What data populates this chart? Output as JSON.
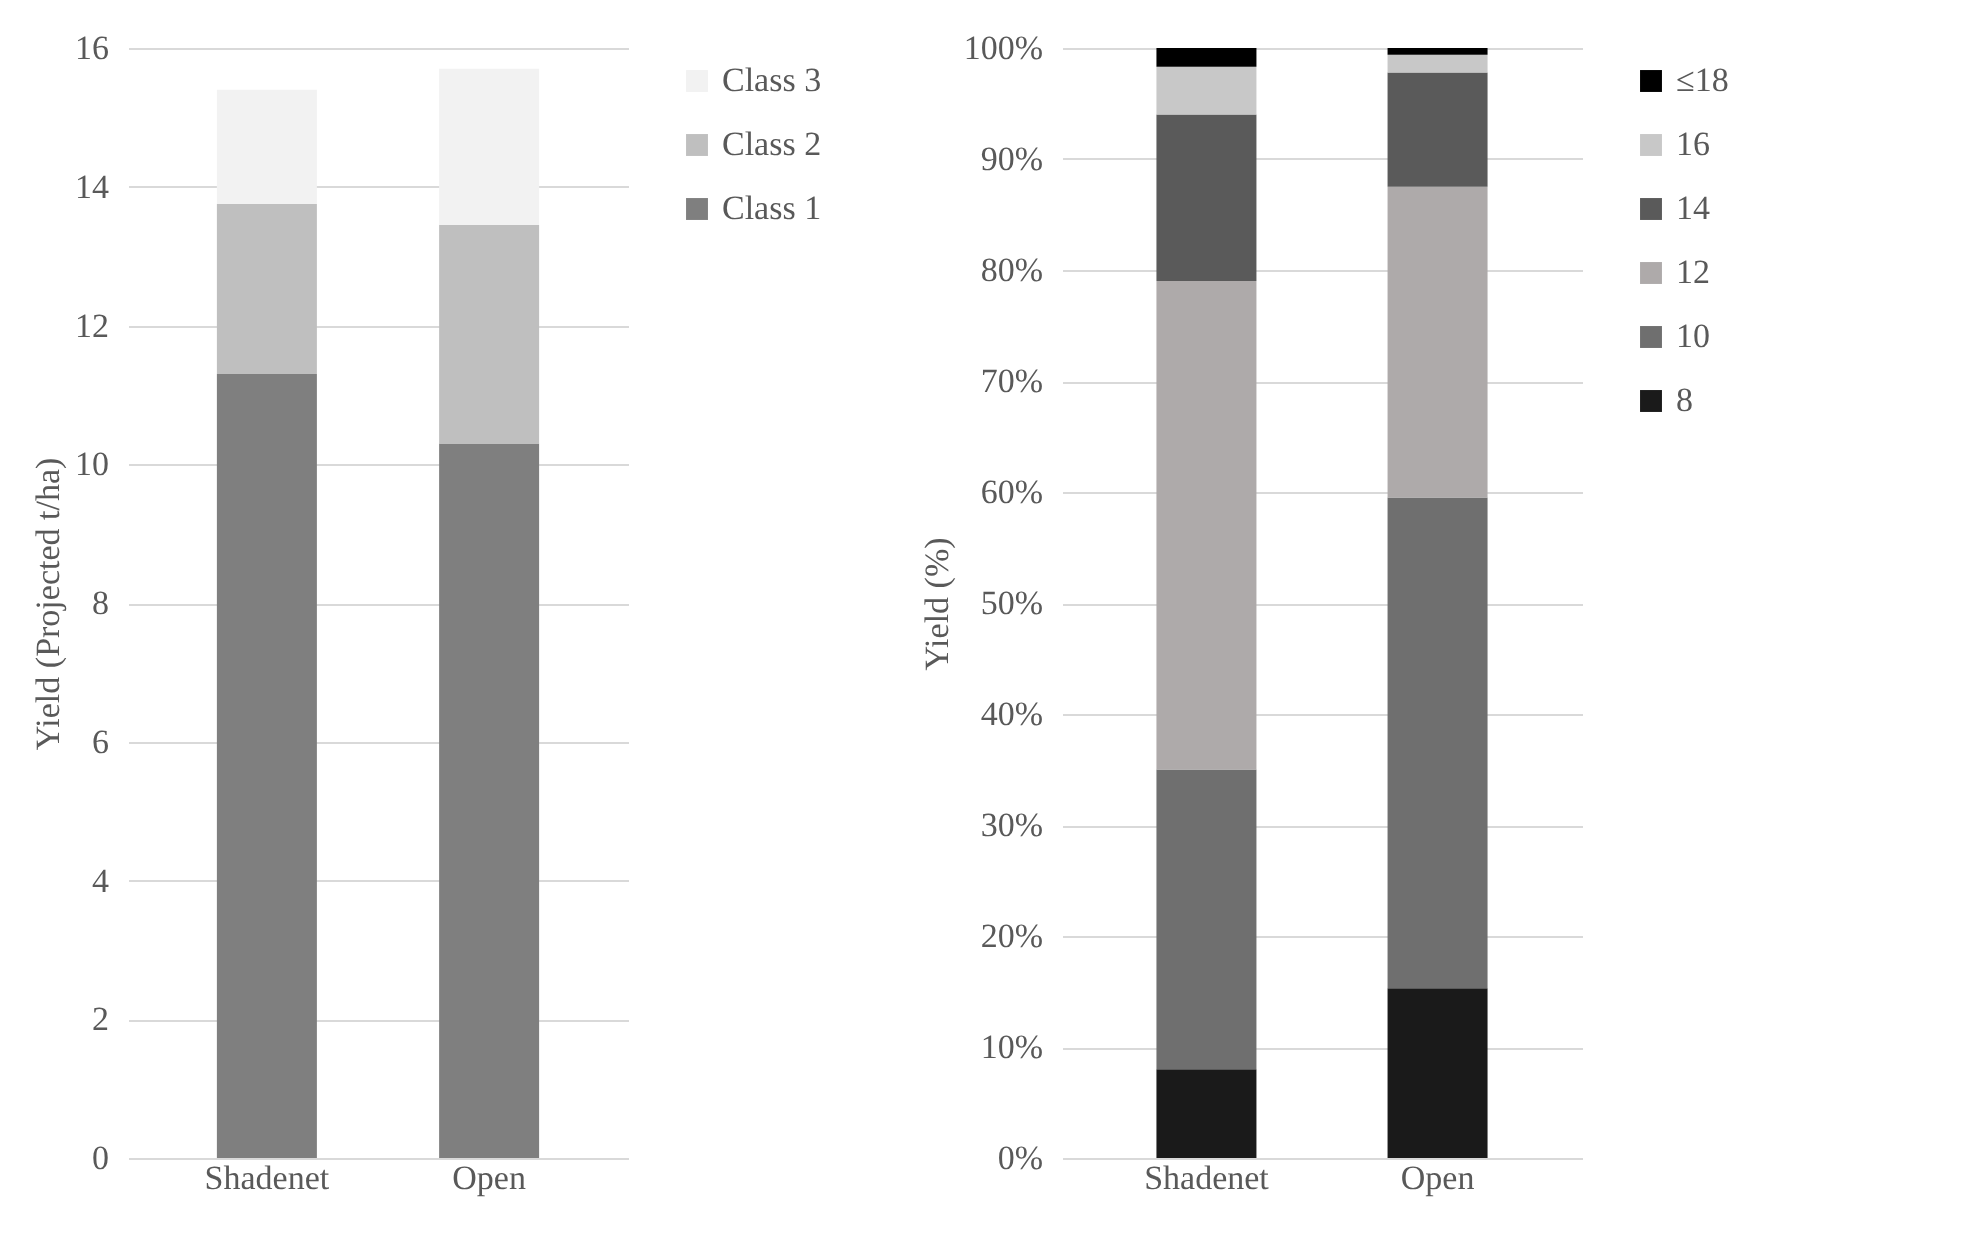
{
  "chart_data": [
    {
      "type": "bar",
      "stacked": true,
      "ylabel": "Yield (Projected t/ha)",
      "categories": [
        "Shadenet",
        "Open"
      ],
      "ylim": [
        0,
        16
      ],
      "yticks": [
        0,
        2,
        4,
        6,
        8,
        10,
        12,
        14,
        16
      ],
      "grid": "y",
      "legend": "right",
      "series": [
        {
          "name": "Class 1",
          "color": "#7f7f7f",
          "values": [
            11.3,
            10.3
          ]
        },
        {
          "name": "Class 2",
          "color": "#bfbfbf",
          "values": [
            2.45,
            3.15
          ]
        },
        {
          "name": "Class 3",
          "color": "#f2f2f2",
          "values": [
            1.65,
            2.25
          ]
        }
      ]
    },
    {
      "type": "bar",
      "stacked": true,
      "ylabel": "Yield (%)",
      "categories": [
        "Shadenet",
        "Open"
      ],
      "ylim": [
        0,
        100
      ],
      "yticks": [
        {
          "value": 0,
          "label": "0%"
        },
        {
          "value": 10,
          "label": "10%"
        },
        {
          "value": 20,
          "label": "20%"
        },
        {
          "value": 30,
          "label": "30%"
        },
        {
          "value": 40,
          "label": "40%"
        },
        {
          "value": 50,
          "label": "50%"
        },
        {
          "value": 60,
          "label": "60%"
        },
        {
          "value": 70,
          "label": "70%"
        },
        {
          "value": 80,
          "label": "80%"
        },
        {
          "value": 90,
          "label": "90%"
        },
        {
          "value": 100,
          "label": "100%"
        }
      ],
      "grid": "y",
      "legend": "right",
      "series": [
        {
          "name": "8",
          "color": "#1a1a1a",
          "values": [
            8,
            15.3
          ]
        },
        {
          "name": "10",
          "color": "#6f6f6f",
          "values": [
            27,
            44.2
          ]
        },
        {
          "name": "12",
          "color": "#aeaaaa",
          "values": [
            44,
            28
          ]
        },
        {
          "name": "14",
          "color": "#5a5a5a",
          "values": [
            15,
            10.3
          ]
        },
        {
          "name": "16",
          "color": "#c8c8c8",
          "values": [
            4.3,
            1.6
          ]
        },
        {
          "name": "≤18",
          "color": "#000000",
          "values": [
            1.7,
            0.6
          ]
        }
      ]
    }
  ]
}
